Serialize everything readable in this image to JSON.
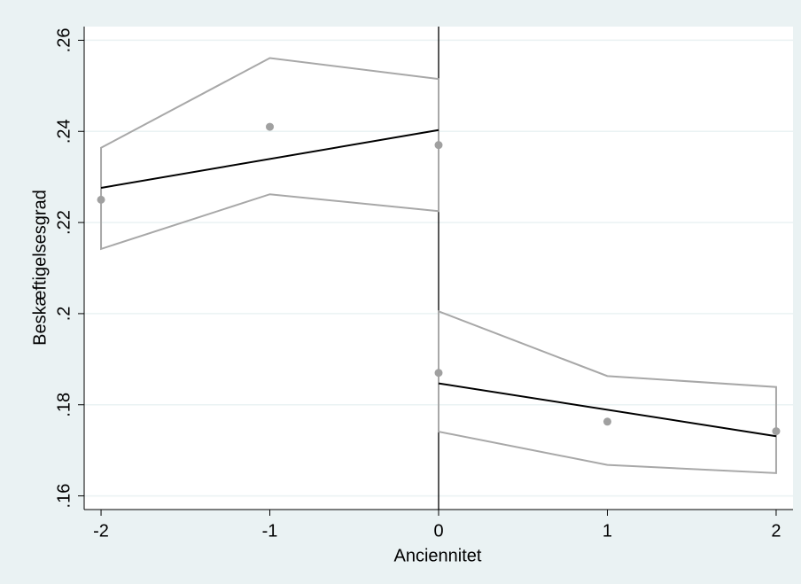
{
  "chart_data": {
    "type": "rd",
    "x_label": "Anciennitet",
    "y_label": "Beskæftigelsesgrad",
    "xlim": [
      -2.1,
      2.1
    ],
    "ylim": [
      0.157,
      0.263
    ],
    "xticks": [
      -2,
      -1,
      0,
      1,
      2
    ],
    "yticks": [
      {
        "value": 0.16,
        "label": ".16"
      },
      {
        "value": 0.18,
        "label": ".18"
      },
      {
        "value": 0.2,
        "label": ".2"
      },
      {
        "value": 0.22,
        "label": ".22"
      },
      {
        "value": 0.24,
        "label": ".24"
      },
      {
        "value": 0.26,
        "label": ".26"
      }
    ],
    "grid": true,
    "cutoff": 0,
    "point_color": "#a0a0a0",
    "fit_color": "#000000",
    "ci_color": "#a8a8a8",
    "groups": [
      {
        "x": [
          -2,
          -1,
          0
        ],
        "points": [
          0.225,
          0.241,
          0.237
        ],
        "upper": [
          0.2364,
          0.2561,
          0.2515
        ],
        "lower": [
          0.2142,
          0.2262,
          0.2225
        ],
        "fit_x": [
          -2,
          0
        ],
        "fit": [
          0.2276,
          0.2403
        ]
      },
      {
        "x": [
          0,
          1,
          2
        ],
        "points": [
          0.187,
          0.1763,
          0.1742
        ],
        "upper": [
          0.2005,
          0.1863,
          0.1839
        ],
        "lower": [
          0.1741,
          0.1668,
          0.165
        ],
        "fit_x": [
          0,
          2
        ],
        "fit": [
          0.1847,
          0.1731
        ]
      }
    ]
  }
}
